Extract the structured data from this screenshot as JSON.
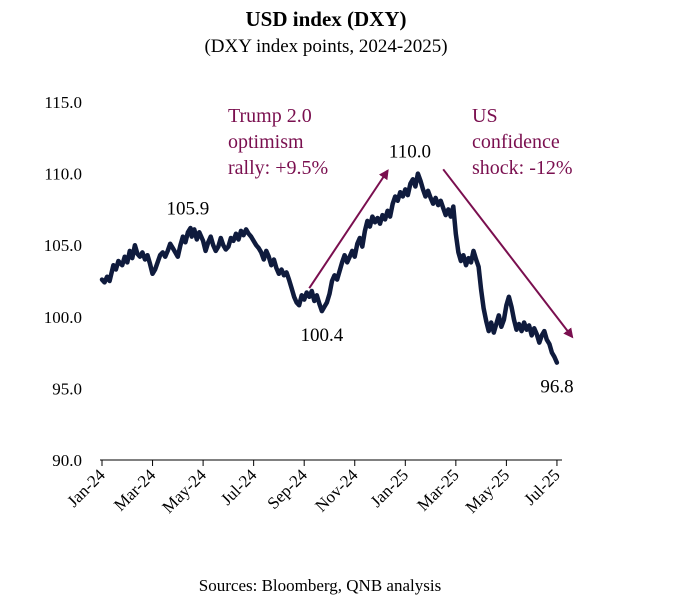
{
  "chart_data": {
    "type": "line",
    "title": "USD index (DXY)",
    "subtitle": "(DXY index points, 2024-2025)",
    "source": "Sources: Bloomberg, QNB analysis",
    "xlabel": "",
    "ylabel": "",
    "ylim": [
      90,
      115
    ],
    "yticks": [
      "115.0",
      "110.0",
      "105.0",
      "100.0",
      "95.0",
      "90.0"
    ],
    "xlim": [
      0,
      18.2
    ],
    "xticks": [
      {
        "label": "Jan-24",
        "x": 0
      },
      {
        "label": "Mar-24",
        "x": 2
      },
      {
        "label": "May-24",
        "x": 4
      },
      {
        "label": "Jul-24",
        "x": 6
      },
      {
        "label": "Sep-24",
        "x": 8
      },
      {
        "label": "Nov-24",
        "x": 10
      },
      {
        "label": "Jan-25",
        "x": 12
      },
      {
        "label": "Mar-25",
        "x": 14
      },
      {
        "label": "May-25",
        "x": 16
      },
      {
        "label": "Jul-25",
        "x": 18
      }
    ],
    "series": [
      {
        "name": "DXY",
        "color": "#0f1b3d",
        "points": [
          [
            0.0,
            102.6
          ],
          [
            0.1,
            102.4
          ],
          [
            0.2,
            102.8
          ],
          [
            0.3,
            102.5
          ],
          [
            0.45,
            103.6
          ],
          [
            0.55,
            103.3
          ],
          [
            0.65,
            103.9
          ],
          [
            0.8,
            103.6
          ],
          [
            0.9,
            104.2
          ],
          [
            1.0,
            103.8
          ],
          [
            1.1,
            104.6
          ],
          [
            1.2,
            104.1
          ],
          [
            1.3,
            105.0
          ],
          [
            1.4,
            104.4
          ],
          [
            1.5,
            104.2
          ],
          [
            1.6,
            104.5
          ],
          [
            1.7,
            104.0
          ],
          [
            1.8,
            104.3
          ],
          [
            1.9,
            103.7
          ],
          [
            2.0,
            103.0
          ],
          [
            2.1,
            103.3
          ],
          [
            2.2,
            103.8
          ],
          [
            2.3,
            104.3
          ],
          [
            2.4,
            104.5
          ],
          [
            2.5,
            104.2
          ],
          [
            2.6,
            104.6
          ],
          [
            2.7,
            105.1
          ],
          [
            2.8,
            104.8
          ],
          [
            2.9,
            104.5
          ],
          [
            3.0,
            104.2
          ],
          [
            3.1,
            105.0
          ],
          [
            3.2,
            105.6
          ],
          [
            3.3,
            105.2
          ],
          [
            3.4,
            105.9
          ],
          [
            3.5,
            106.2
          ],
          [
            3.55,
            105.6
          ],
          [
            3.65,
            106.1
          ],
          [
            3.75,
            105.4
          ],
          [
            3.85,
            105.9
          ],
          [
            4.0,
            105.3
          ],
          [
            4.1,
            104.6
          ],
          [
            4.2,
            105.2
          ],
          [
            4.3,
            105.6
          ],
          [
            4.4,
            105.0
          ],
          [
            4.5,
            104.6
          ],
          [
            4.6,
            104.9
          ],
          [
            4.7,
            105.5
          ],
          [
            4.8,
            105.0
          ],
          [
            4.9,
            104.7
          ],
          [
            5.0,
            104.9
          ],
          [
            5.1,
            105.5
          ],
          [
            5.2,
            105.3
          ],
          [
            5.3,
            105.8
          ],
          [
            5.4,
            105.4
          ],
          [
            5.5,
            106.0
          ],
          [
            5.6,
            105.7
          ],
          [
            5.7,
            106.1
          ],
          [
            5.8,
            105.8
          ],
          [
            5.9,
            105.6
          ],
          [
            6.0,
            105.3
          ],
          [
            6.1,
            105.0
          ],
          [
            6.2,
            104.8
          ],
          [
            6.3,
            104.5
          ],
          [
            6.4,
            104.0
          ],
          [
            6.5,
            104.6
          ],
          [
            6.6,
            104.2
          ],
          [
            6.7,
            103.6
          ],
          [
            6.8,
            104.0
          ],
          [
            6.9,
            103.4
          ],
          [
            7.0,
            103.0
          ],
          [
            7.1,
            103.3
          ],
          [
            7.2,
            102.9
          ],
          [
            7.3,
            103.1
          ],
          [
            7.4,
            102.6
          ],
          [
            7.5,
            102.0
          ],
          [
            7.6,
            101.4
          ],
          [
            7.7,
            101.0
          ],
          [
            7.8,
            100.8
          ],
          [
            7.9,
            101.5
          ],
          [
            8.0,
            101.2
          ],
          [
            8.1,
            101.7
          ],
          [
            8.2,
            101.4
          ],
          [
            8.3,
            101.8
          ],
          [
            8.4,
            101.1
          ],
          [
            8.5,
            101.5
          ],
          [
            8.6,
            100.9
          ],
          [
            8.7,
            100.4
          ],
          [
            8.8,
            100.7
          ],
          [
            8.9,
            101.0
          ],
          [
            9.0,
            101.6
          ],
          [
            9.1,
            102.5
          ],
          [
            9.2,
            102.9
          ],
          [
            9.3,
            102.6
          ],
          [
            9.4,
            103.2
          ],
          [
            9.5,
            103.8
          ],
          [
            9.6,
            104.3
          ],
          [
            9.7,
            103.8
          ],
          [
            9.8,
            104.2
          ],
          [
            9.9,
            104.6
          ],
          [
            10.0,
            104.2
          ],
          [
            10.1,
            105.1
          ],
          [
            10.2,
            105.5
          ],
          [
            10.3,
            104.9
          ],
          [
            10.4,
            106.0
          ],
          [
            10.5,
            106.7
          ],
          [
            10.6,
            106.3
          ],
          [
            10.7,
            107.0
          ],
          [
            10.8,
            106.6
          ],
          [
            10.9,
            106.9
          ],
          [
            11.0,
            106.5
          ],
          [
            11.1,
            107.1
          ],
          [
            11.2,
            106.8
          ],
          [
            11.3,
            107.4
          ],
          [
            11.4,
            107.0
          ],
          [
            11.5,
            107.9
          ],
          [
            11.6,
            108.4
          ],
          [
            11.7,
            108.1
          ],
          [
            11.8,
            108.7
          ],
          [
            11.9,
            108.4
          ],
          [
            12.0,
            108.9
          ],
          [
            12.1,
            108.5
          ],
          [
            12.2,
            109.3
          ],
          [
            12.3,
            109.6
          ],
          [
            12.4,
            109.1
          ],
          [
            12.5,
            110.0
          ],
          [
            12.6,
            109.5
          ],
          [
            12.7,
            108.9
          ],
          [
            12.8,
            108.4
          ],
          [
            12.9,
            108.8
          ],
          [
            13.0,
            108.3
          ],
          [
            13.1,
            107.9
          ],
          [
            13.2,
            108.3
          ],
          [
            13.3,
            107.8
          ],
          [
            13.4,
            108.1
          ],
          [
            13.5,
            107.6
          ],
          [
            13.6,
            107.1
          ],
          [
            13.7,
            107.5
          ],
          [
            13.8,
            107.0
          ],
          [
            13.9,
            107.7
          ],
          [
            14.0,
            105.8
          ],
          [
            14.1,
            104.5
          ],
          [
            14.2,
            103.9
          ],
          [
            14.3,
            104.3
          ],
          [
            14.4,
            103.6
          ],
          [
            14.5,
            104.1
          ],
          [
            14.6,
            103.8
          ],
          [
            14.7,
            104.6
          ],
          [
            14.8,
            104.0
          ],
          [
            14.9,
            103.5
          ],
          [
            15.0,
            101.9
          ],
          [
            15.1,
            100.6
          ],
          [
            15.2,
            99.7
          ],
          [
            15.3,
            99.0
          ],
          [
            15.4,
            99.6
          ],
          [
            15.5,
            98.9
          ],
          [
            15.6,
            99.5
          ],
          [
            15.7,
            100.1
          ],
          [
            15.8,
            99.3
          ],
          [
            15.9,
            99.8
          ],
          [
            16.0,
            100.8
          ],
          [
            16.1,
            101.4
          ],
          [
            16.2,
            100.7
          ],
          [
            16.3,
            99.8
          ],
          [
            16.4,
            99.1
          ],
          [
            16.5,
            99.5
          ],
          [
            16.6,
            99.0
          ],
          [
            16.7,
            99.6
          ],
          [
            16.8,
            99.1
          ],
          [
            16.9,
            99.4
          ],
          [
            17.0,
            98.7
          ],
          [
            17.1,
            99.2
          ],
          [
            17.2,
            98.8
          ],
          [
            17.3,
            98.2
          ],
          [
            17.4,
            98.7
          ],
          [
            17.5,
            99.0
          ],
          [
            17.6,
            98.4
          ],
          [
            17.7,
            98.1
          ],
          [
            17.8,
            97.5
          ],
          [
            17.9,
            97.2
          ],
          [
            18.0,
            96.8
          ]
        ]
      }
    ],
    "annotations": [
      {
        "text": "105.9",
        "x": 3.4,
        "y": 105.9,
        "placement": "above"
      },
      {
        "text": "100.4",
        "x": 8.7,
        "y": 100.4,
        "placement": "below"
      },
      {
        "text": "110.0",
        "x": 12.5,
        "y": 110.0,
        "placement": "above-left"
      },
      {
        "text": "96.8",
        "x": 18.0,
        "y": 96.8,
        "placement": "below"
      }
    ],
    "callouts": [
      {
        "lines": [
          "Trump 2.0",
          "optimism",
          "rally: +9.5%"
        ],
        "color": "#7a0f4f",
        "arrow_from": [
          8.2,
          102.0
        ],
        "arrow_to": [
          11.3,
          110.2
        ]
      },
      {
        "lines": [
          "US",
          "confidence",
          "shock: -12%"
        ],
        "color": "#7a0f4f",
        "arrow_from": [
          13.5,
          110.3
        ],
        "arrow_to": [
          18.6,
          98.6
        ]
      }
    ]
  }
}
